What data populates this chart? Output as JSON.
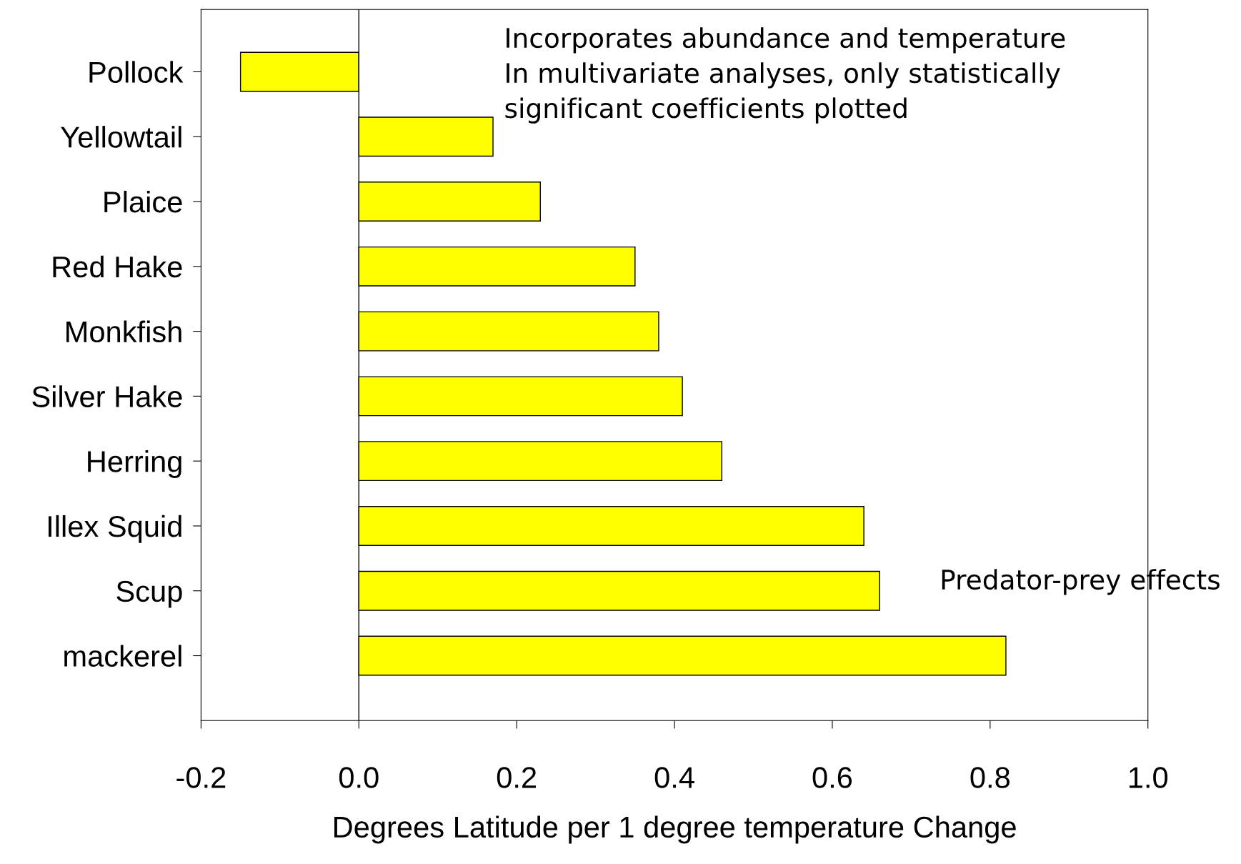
{
  "chart_data": {
    "type": "bar",
    "orientation": "horizontal",
    "xlabel": "Degrees Latitude per 1 degree temperature Change",
    "categories": [
      "Pollock",
      "Yellowtail",
      "Plaice",
      "Red Hake",
      "Monkfish",
      "Silver Hake",
      "Herring",
      "Illex Squid",
      "Scup",
      "mackerel"
    ],
    "values": [
      -0.15,
      0.17,
      0.23,
      0.35,
      0.38,
      0.41,
      0.46,
      0.64,
      0.66,
      0.82
    ],
    "color": "#ffff00",
    "xlim": [
      -0.2,
      1.0
    ],
    "xticks": [
      {
        "value": -0.2,
        "label": "-0.2"
      },
      {
        "value": 0.0,
        "label": "0.0"
      },
      {
        "value": 0.2,
        "label": "0.2"
      },
      {
        "value": 0.4,
        "label": "0.4"
      },
      {
        "value": 0.6,
        "label": "0.6"
      },
      {
        "value": 0.8,
        "label": "0.8"
      },
      {
        "value": 1.0,
        "label": "1.0"
      }
    ],
    "ref_lines": [
      {
        "axis": "x",
        "value": 0,
        "color": "#000000"
      }
    ],
    "annotations": [
      "Incorporates abundance and temperature\nIn multivariate analyses, only statistically\nsignificant coefficients plotted",
      "Predator-prey effects"
    ],
    "grid": false,
    "legend": false
  }
}
